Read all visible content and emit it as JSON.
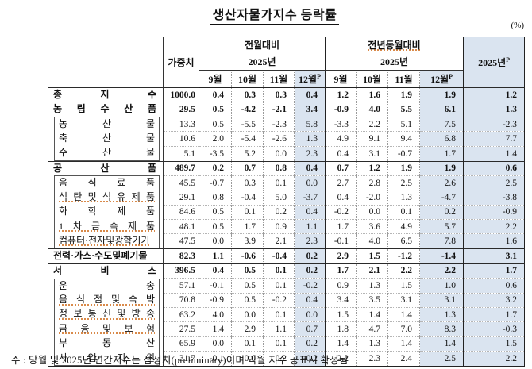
{
  "title": "생산자물가지수  등락률",
  "unit_label": "(%)",
  "colors": {
    "highlight": "#dae4f0",
    "border_dark": "#222222",
    "spellcheck_underline": "#d98a4a"
  },
  "table": {
    "header": {
      "weight": "가중치",
      "mom_group": "전월대비",
      "yoy_group": "전년동월대비",
      "year_sub": "2025년",
      "annual": {
        "text": "2025년",
        "sup": "P"
      },
      "months": [
        {
          "text": "9월",
          "sup": ""
        },
        {
          "text": "10월",
          "sup": ""
        },
        {
          "text": "11월",
          "sup": ""
        },
        {
          "text": "12월",
          "sup": "P"
        }
      ]
    },
    "rows": [
      {
        "label": "총 지 수",
        "level": "section",
        "weight": "1000.0",
        "mom": [
          "0.4",
          "0.3",
          "0.3",
          "0.4"
        ],
        "yoy": [
          "1.2",
          "1.6",
          "1.9",
          "1.9"
        ],
        "annual": "1.2",
        "spell_underline": false
      },
      {
        "label": "농 림 수 산 품",
        "level": "section",
        "weight": "29.5",
        "mom": [
          "0.5",
          "-4.2",
          "-2.1",
          "3.4"
        ],
        "yoy": [
          "-0.9",
          "4.0",
          "5.5",
          "6.1"
        ],
        "annual": "1.3",
        "spell_underline": false
      },
      {
        "label": "농 산 물",
        "level": "sub",
        "weight": "13.3",
        "mom": [
          "0.5",
          "-5.5",
          "-2.3",
          "5.8"
        ],
        "yoy": [
          "-3.3",
          "2.2",
          "5.1",
          "7.5"
        ],
        "annual": "-2.3",
        "spell_underline": false
      },
      {
        "label": "축 산 물",
        "level": "sub",
        "weight": "10.6",
        "mom": [
          "2.0",
          "-5.4",
          "-2.6",
          "1.3"
        ],
        "yoy": [
          "4.9",
          "9.1",
          "9.4",
          "6.8"
        ],
        "annual": "7.7",
        "spell_underline": false
      },
      {
        "label": "수 산 물",
        "level": "sub",
        "weight": "5.1",
        "mom": [
          "-3.5",
          "5.2",
          "0.0",
          "2.3"
        ],
        "yoy": [
          "0.4",
          "3.1",
          "-0.7",
          "1.7"
        ],
        "annual": "1.4",
        "spell_underline": false
      },
      {
        "label": "공 산 품",
        "level": "section",
        "weight": "489.7",
        "mom": [
          "0.2",
          "0.7",
          "0.8",
          "0.4"
        ],
        "yoy": [
          "0.7",
          "1.2",
          "1.9",
          "1.9"
        ],
        "annual": "0.6",
        "spell_underline": false
      },
      {
        "label": "음 식 료 품",
        "level": "sub",
        "weight": "45.5",
        "mom": [
          "-0.7",
          "0.3",
          "0.1",
          "0.0"
        ],
        "yoy": [
          "2.7",
          "2.8",
          "2.5",
          "2.6"
        ],
        "annual": "2.5",
        "spell_underline": false
      },
      {
        "label": "석 탄 및 석 유 제 품",
        "level": "sub",
        "weight": "29.1",
        "mom": [
          "0.8",
          "-0.4",
          "5.0",
          "-3.7"
        ],
        "yoy": [
          "0.4",
          "-2.0",
          "1.3",
          "-4.7"
        ],
        "annual": "-3.8",
        "spell_underline": true
      },
      {
        "label": "화 학 제 품",
        "level": "sub",
        "weight": "84.6",
        "mom": [
          "0.5",
          "0.1",
          "0.2",
          "0.4"
        ],
        "yoy": [
          "-0.2",
          "0.0",
          "0.1",
          "0.2"
        ],
        "annual": "-0.9",
        "spell_underline": false
      },
      {
        "label": "1 차 금 속 제 품",
        "level": "sub",
        "weight": "48.1",
        "mom": [
          "0.5",
          "1.7",
          "0.9",
          "1.1"
        ],
        "yoy": [
          "1.7",
          "3.6",
          "4.9",
          "5.7"
        ],
        "annual": "2.2",
        "spell_underline": true
      },
      {
        "label": "컴퓨터·전자및광학기기",
        "level": "sub",
        "weight": "47.5",
        "mom": [
          "0.0",
          "3.9",
          "2.1",
          "2.3"
        ],
        "yoy": [
          "-0.1",
          "4.0",
          "6.5",
          "7.8"
        ],
        "annual": "1.6",
        "spell_underline": true
      },
      {
        "label": "전력·가스·수도및폐기물",
        "level": "section",
        "weight": "82.3",
        "mom": [
          "1.1",
          "-0.6",
          "-0.4",
          "0.2"
        ],
        "yoy": [
          "2.9",
          "1.5",
          "-1.2",
          "-1.4"
        ],
        "annual": "3.1",
        "spell_underline": false
      },
      {
        "label": "서 비 스",
        "level": "section",
        "weight": "396.5",
        "mom": [
          "0.4",
          "0.5",
          "0.1",
          "0.2"
        ],
        "yoy": [
          "1.7",
          "2.1",
          "2.2",
          "2.2"
        ],
        "annual": "1.7",
        "spell_underline": false
      },
      {
        "label": "운 송",
        "level": "sub",
        "weight": "57.1",
        "mom": [
          "-0.1",
          "0.5",
          "0.1",
          "-0.2"
        ],
        "yoy": [
          "0.9",
          "1.3",
          "1.5",
          "1.0"
        ],
        "annual": "0.6",
        "spell_underline": false
      },
      {
        "label": "음 식 점 및 숙 박",
        "level": "sub",
        "weight": "70.8",
        "mom": [
          "-0.9",
          "0.5",
          "-0.2",
          "0.4"
        ],
        "yoy": [
          "3.4",
          "3.5",
          "3.1",
          "3.1"
        ],
        "annual": "3.2",
        "spell_underline": true
      },
      {
        "label": "정 보 통 신 및 방 송",
        "level": "sub",
        "weight": "63.2",
        "mom": [
          "4.0",
          "0.0",
          "0.1",
          "0.0"
        ],
        "yoy": [
          "1.5",
          "1.4",
          "1.4",
          "1.3"
        ],
        "annual": "1.7",
        "spell_underline": true
      },
      {
        "label": "금 융 및 보 험",
        "level": "sub",
        "weight": "27.5",
        "mom": [
          "1.4",
          "2.9",
          "1.1",
          "0.7"
        ],
        "yoy": [
          "1.8",
          "4.7",
          "7.0",
          "8.3"
        ],
        "annual": "-0.3",
        "spell_underline": true
      },
      {
        "label": "부 동 산",
        "level": "sub",
        "weight": "65.9",
        "mom": [
          "0.0",
          "0.1",
          "0.1",
          "0.2"
        ],
        "yoy": [
          "1.4",
          "1.3",
          "1.4",
          "1.4"
        ],
        "annual": "1.5",
        "spell_underline": false
      },
      {
        "label": "사 업 지 원",
        "level": "sub",
        "weight": "31.7",
        "mom": [
          "-0.1",
          "0.0",
          "0.2",
          "-0.2"
        ],
        "yoy": [
          "2.2",
          "2.3",
          "2.4",
          "2.5"
        ],
        "annual": "2.2",
        "spell_underline": false
      }
    ]
  },
  "footnote": "주 : 당월 및 2025년 연간지수는 잠정치(preliminary)이며 익월 지수 공표시 확정됨"
}
